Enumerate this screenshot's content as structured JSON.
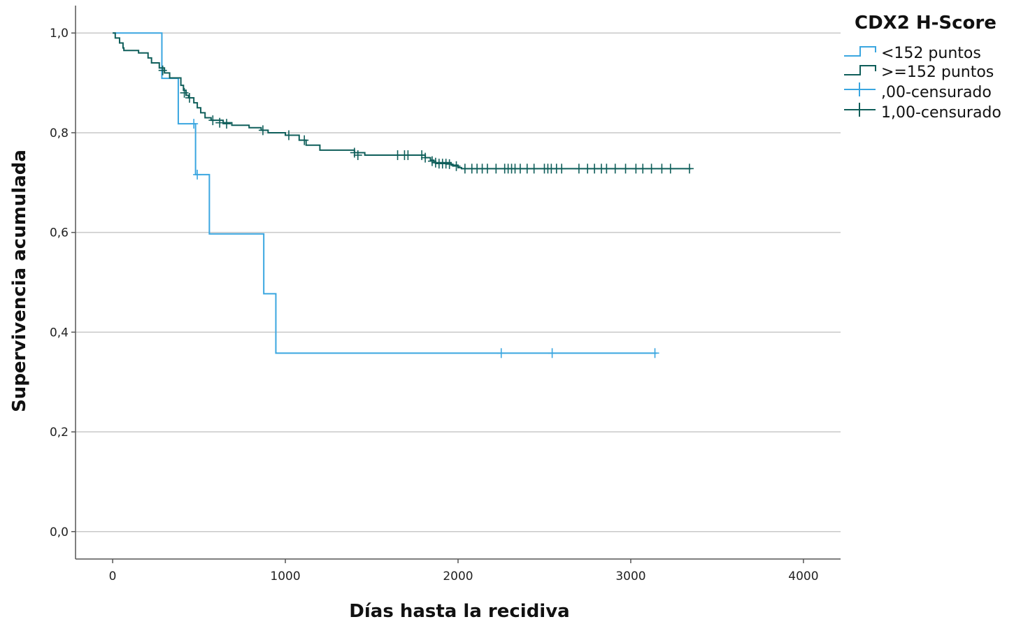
{
  "colors": {
    "group_low": "#3aa6e0",
    "group_high": "#0f5e5a",
    "grid": "#c8c8c8",
    "axis": "#555555"
  },
  "chart_data": {
    "type": "line",
    "subtype": "kaplan-meier",
    "xlabel": "Días hasta la recidiva",
    "ylabel": "Supervivencia acumulada",
    "xlim": [
      -215,
      4215
    ],
    "ylim": [
      -0.055,
      1.055
    ],
    "x_ticks": [
      0,
      1000,
      2000,
      3000,
      4000
    ],
    "x_tick_labels": [
      "0",
      "1000",
      "2000",
      "3000",
      "4000"
    ],
    "y_ticks": [
      0,
      0.2,
      0.4,
      0.6,
      0.8,
      1.0
    ],
    "y_tick_labels": [
      "0,0",
      "0,2",
      "0,4",
      "0,6",
      "0,8",
      "1,0"
    ],
    "grid": "horizontal",
    "legend": {
      "position": "top-right",
      "title": "CDX2 H-Score",
      "entries": [
        {
          "label": "<152 puntos",
          "kind": "step",
          "series": 0
        },
        {
          "label": ">=152 puntos",
          "kind": "step",
          "series": 1
        },
        {
          "label": ",00-censurado",
          "kind": "censor",
          "series": 0
        },
        {
          "label": "1,00-censurado",
          "kind": "censor",
          "series": 1
        }
      ]
    },
    "series": [
      {
        "name": "<152 puntos",
        "color": "#3aa6e0",
        "steps": [
          [
            0,
            1.0
          ],
          [
            285,
            0.909
          ],
          [
            380,
            0.818
          ],
          [
            480,
            0.716
          ],
          [
            560,
            0.597
          ],
          [
            875,
            0.477
          ],
          [
            945,
            0.358
          ],
          [
            3150,
            0.358
          ]
        ],
        "censored": [
          [
            470,
            0.818
          ],
          [
            490,
            0.716
          ],
          [
            2250,
            0.358
          ],
          [
            2545,
            0.358
          ],
          [
            3140,
            0.358
          ]
        ]
      },
      {
        "name": ">=152 puntos",
        "color": "#0f5e5a",
        "steps": [
          [
            0,
            1.0
          ],
          [
            15,
            0.99
          ],
          [
            40,
            0.98
          ],
          [
            60,
            0.97
          ],
          [
            65,
            0.965
          ],
          [
            150,
            0.96
          ],
          [
            205,
            0.95
          ],
          [
            225,
            0.94
          ],
          [
            270,
            0.93
          ],
          [
            300,
            0.92
          ],
          [
            330,
            0.91
          ],
          [
            395,
            0.895
          ],
          [
            410,
            0.885
          ],
          [
            425,
            0.875
          ],
          [
            440,
            0.87
          ],
          [
            470,
            0.86
          ],
          [
            490,
            0.85
          ],
          [
            510,
            0.84
          ],
          [
            535,
            0.83
          ],
          [
            570,
            0.825
          ],
          [
            640,
            0.82
          ],
          [
            690,
            0.815
          ],
          [
            790,
            0.81
          ],
          [
            860,
            0.805
          ],
          [
            900,
            0.8
          ],
          [
            1000,
            0.795
          ],
          [
            1080,
            0.785
          ],
          [
            1120,
            0.775
          ],
          [
            1200,
            0.765
          ],
          [
            1400,
            0.76
          ],
          [
            1460,
            0.755
          ],
          [
            1810,
            0.75
          ],
          [
            1840,
            0.745
          ],
          [
            1860,
            0.74
          ],
          [
            1960,
            0.735
          ],
          [
            2000,
            0.73
          ],
          [
            2020,
            0.728
          ],
          [
            3350,
            0.728
          ]
        ],
        "censored": [
          [
            290,
            0.925
          ],
          [
            415,
            0.88
          ],
          [
            445,
            0.87
          ],
          [
            580,
            0.825
          ],
          [
            620,
            0.82
          ],
          [
            660,
            0.818
          ],
          [
            870,
            0.805
          ],
          [
            1020,
            0.795
          ],
          [
            1110,
            0.785
          ],
          [
            1400,
            0.76
          ],
          [
            1420,
            0.755
          ],
          [
            1650,
            0.755
          ],
          [
            1690,
            0.755
          ],
          [
            1710,
            0.755
          ],
          [
            1790,
            0.755
          ],
          [
            1810,
            0.75
          ],
          [
            1850,
            0.743
          ],
          [
            1870,
            0.74
          ],
          [
            1890,
            0.738
          ],
          [
            1910,
            0.738
          ],
          [
            1930,
            0.738
          ],
          [
            1950,
            0.737
          ],
          [
            1990,
            0.733
          ],
          [
            2040,
            0.728
          ],
          [
            2080,
            0.728
          ],
          [
            2110,
            0.728
          ],
          [
            2140,
            0.728
          ],
          [
            2170,
            0.728
          ],
          [
            2220,
            0.728
          ],
          [
            2270,
            0.728
          ],
          [
            2290,
            0.728
          ],
          [
            2310,
            0.728
          ],
          [
            2330,
            0.728
          ],
          [
            2360,
            0.728
          ],
          [
            2400,
            0.728
          ],
          [
            2440,
            0.728
          ],
          [
            2500,
            0.728
          ],
          [
            2520,
            0.728
          ],
          [
            2540,
            0.728
          ],
          [
            2570,
            0.728
          ],
          [
            2600,
            0.728
          ],
          [
            2700,
            0.728
          ],
          [
            2750,
            0.728
          ],
          [
            2790,
            0.728
          ],
          [
            2830,
            0.728
          ],
          [
            2860,
            0.728
          ],
          [
            2910,
            0.728
          ],
          [
            2970,
            0.728
          ],
          [
            3030,
            0.728
          ],
          [
            3070,
            0.728
          ],
          [
            3120,
            0.728
          ],
          [
            3180,
            0.728
          ],
          [
            3230,
            0.728
          ],
          [
            3340,
            0.728
          ]
        ]
      }
    ]
  }
}
